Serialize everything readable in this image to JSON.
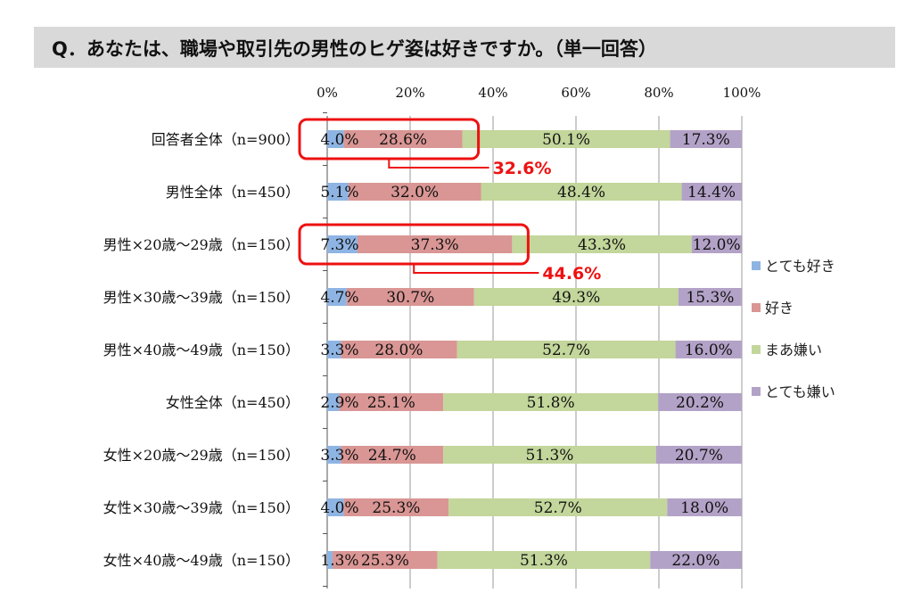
{
  "title": "Q．あなたは、職場や取引先の男性のヒゲ姿は好きですか。（単一回答）",
  "chart_data": {
    "type": "bar",
    "orientation": "horizontal",
    "stacked": "percent",
    "categories": [
      "回答者全体（n=900）",
      "男性全体（n=450）",
      "男性×20歳～29歳（n=150）",
      "男性×30歳～39歳（n=150）",
      "男性×40歳～49歳（n=150）",
      "女性全体（n=450）",
      "女性×20歳～29歳（n=150）",
      "女性×30歳～39歳（n=150）",
      "女性×40歳～49歳（n=150）"
    ],
    "series": [
      {
        "name": "とても好き",
        "color": "#8eb4e3",
        "values": [
          4.0,
          5.1,
          7.3,
          4.7,
          3.3,
          2.9,
          3.3,
          4.0,
          1.3
        ]
      },
      {
        "name": "好き",
        "color": "#d99694",
        "values": [
          28.6,
          32.0,
          37.3,
          30.7,
          28.0,
          25.1,
          24.7,
          25.3,
          25.3
        ]
      },
      {
        "name": "まあ嫌い",
        "color": "#c3d69b",
        "values": [
          50.1,
          48.4,
          43.3,
          49.3,
          52.7,
          51.8,
          51.3,
          52.7,
          51.3
        ]
      },
      {
        "name": "とても嫌い",
        "color": "#b3a2c7",
        "values": [
          17.3,
          14.4,
          12.0,
          15.3,
          16.0,
          20.2,
          20.7,
          18.0,
          22.0
        ]
      }
    ],
    "xlim": [
      0,
      100
    ],
    "xticks": [
      "0%",
      "20%",
      "40%",
      "60%",
      "80%",
      "100%"
    ],
    "grid": true,
    "legend_position": "right",
    "annotations": [
      {
        "category_index": 0,
        "text": "32.6%",
        "color": "#ee1111"
      },
      {
        "category_index": 2,
        "text": "44.6%",
        "color": "#ee1111"
      }
    ]
  }
}
